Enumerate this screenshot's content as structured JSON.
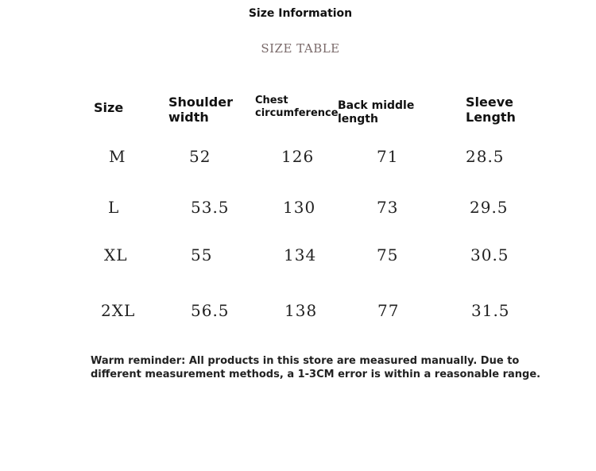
{
  "header": {
    "title": "Size Information",
    "subtitle": "SIZE TABLE"
  },
  "table": {
    "columns": [
      "Size",
      "Shoulder width",
      "Chest circumference",
      "Back middle length",
      "Sleeve Length"
    ],
    "rows": [
      [
        "M",
        52,
        126,
        71,
        28.5
      ],
      [
        "L",
        53.5,
        130,
        73,
        29.5
      ],
      [
        "XL",
        55,
        134,
        75,
        30.5
      ],
      [
        "2XL",
        56.5,
        138,
        77,
        31.5
      ]
    ]
  },
  "note": "Warm reminder: All products in this store are measured manually. Due to different measurement methods, a 1-3CM error is within a reasonable range."
}
